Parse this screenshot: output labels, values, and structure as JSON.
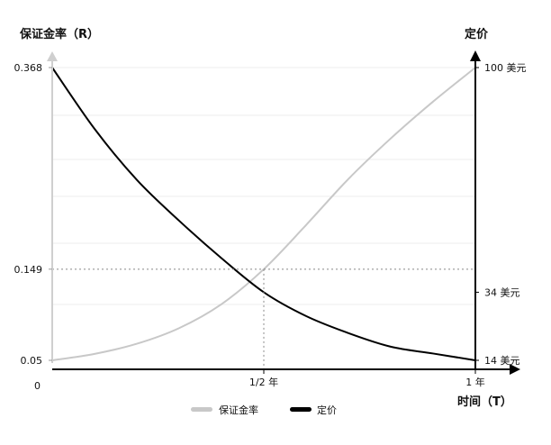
{
  "chart_data": {
    "type": "line",
    "y_left_label": "保证金率（R）",
    "y_right_label": "定价",
    "x_label": "时间（T）",
    "x_origin_label": "0",
    "x_ticks": [
      {
        "value": 0.5,
        "label": "1/2 年"
      },
      {
        "value": 1.0,
        "label": "1 年"
      }
    ],
    "y_left_ticks": [
      {
        "value": 0.368,
        "label": "0.368"
      },
      {
        "value": 0.149,
        "label": "0.149"
      },
      {
        "value": 0.05,
        "label": "0.05"
      }
    ],
    "y_right_ticks": [
      {
        "value": 100,
        "label": "100 美元"
      },
      {
        "value": 34,
        "label": "34 美元"
      },
      {
        "value": 14,
        "label": "14 美元"
      }
    ],
    "ylim_left": [
      0.05,
      0.368
    ],
    "ylim_right": [
      14,
      100
    ],
    "xlim": [
      0,
      1
    ],
    "series": [
      {
        "name": "保证金率",
        "axis": "left",
        "color": "#c8c8c8",
        "x": [
          0,
          0.1,
          0.2,
          0.3,
          0.4,
          0.5,
          0.6,
          0.7,
          0.8,
          0.9,
          1.0
        ],
        "values": [
          0.05,
          0.057,
          0.068,
          0.085,
          0.111,
          0.149,
          0.197,
          0.247,
          0.291,
          0.331,
          0.368
        ]
      },
      {
        "name": "定价",
        "axis": "right",
        "color": "#000000",
        "x": [
          0,
          0.1,
          0.2,
          0.3,
          0.4,
          0.5,
          0.6,
          0.7,
          0.8,
          0.9,
          1.0
        ],
        "values": [
          100,
          82,
          67,
          55,
          44,
          34,
          27,
          22,
          18,
          16,
          14
        ]
      }
    ],
    "crossing": {
      "x": 0.5,
      "y_left": 0.149,
      "y_right": 34
    },
    "legend": [
      "保证金率",
      "定价"
    ],
    "legend_position": "bottom-center",
    "grid": true
  }
}
